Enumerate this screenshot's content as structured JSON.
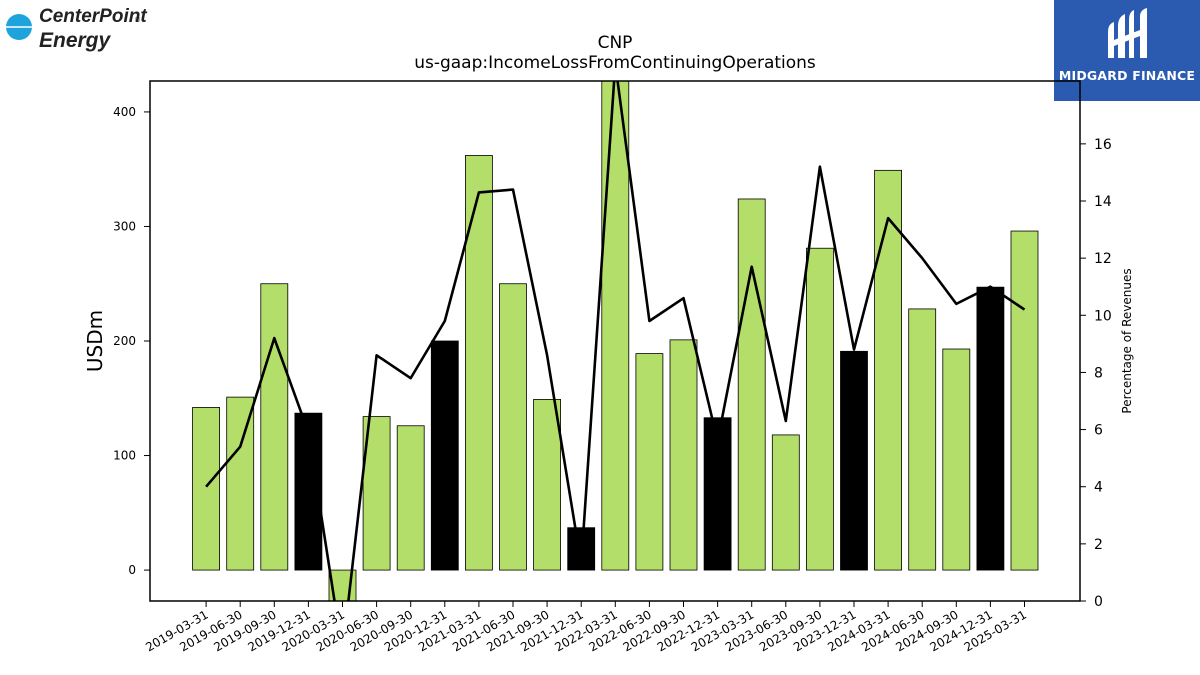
{
  "brand": {
    "left_logo_line1": "CenterPoint",
    "left_logo_line2": "Energy",
    "left_logo_mark": "®",
    "right_logo_text": "MIDGARD FINANCE",
    "colors": {
      "centerpoint_blue": "#1fa3dc",
      "midgard_blue": "#2a5bb0"
    }
  },
  "chart_data": {
    "type": "bar",
    "title": "CNP",
    "subtitle": "us-gaap:IncomeLossFromContinuingOperations",
    "ylabel": "USDm",
    "ylabel_right": "Percentage of Revenues",
    "categories": [
      "2019-03-31",
      "2019-06-30",
      "2019-09-30",
      "2019-12-31",
      "2020-03-31",
      "2020-06-30",
      "2020-09-30",
      "2020-12-31",
      "2021-03-31",
      "2021-06-30",
      "2021-09-30",
      "2021-12-31",
      "2022-03-31",
      "2022-06-30",
      "2022-09-30",
      "2022-12-31",
      "2023-03-31",
      "2023-06-30",
      "2023-09-30",
      "2023-12-31",
      "2024-03-31",
      "2024-06-30",
      "2024-09-30",
      "2024-12-31",
      "2025-03-31"
    ],
    "series": [
      {
        "kind": "bar",
        "axis": "left",
        "values": [
          142,
          151,
          250,
          137,
          -32,
          134,
          126,
          200,
          362,
          250,
          149,
          37,
          438,
          189,
          201,
          133,
          324,
          118,
          281,
          191,
          349,
          228,
          193,
          247,
          296
        ],
        "highlight": [
          false,
          false,
          false,
          true,
          false,
          false,
          false,
          true,
          false,
          false,
          false,
          true,
          false,
          false,
          false,
          true,
          false,
          false,
          false,
          true,
          false,
          false,
          false,
          true,
          false
        ],
        "color": "#b3de69",
        "highlight_color": "#000000"
      },
      {
        "kind": "line",
        "axis": "right",
        "values": [
          4.0,
          5.4,
          9.2,
          5.9,
          -1.8,
          8.6,
          7.8,
          9.8,
          14.3,
          14.4,
          8.6,
          1.3,
          18.8,
          9.8,
          10.6,
          5.6,
          11.7,
          6.3,
          15.2,
          8.8,
          13.4,
          12.0,
          10.4,
          11.0,
          10.2
        ],
        "color": "#000000"
      }
    ],
    "ylim": [
      -27,
      427
    ],
    "yticks": [
      0,
      100,
      200,
      300,
      400
    ],
    "ylim_right": [
      0,
      18.2
    ],
    "yticks_right": [
      0,
      2,
      4,
      6,
      8,
      10,
      12,
      14,
      16
    ],
    "grid": false,
    "legend": "none"
  }
}
